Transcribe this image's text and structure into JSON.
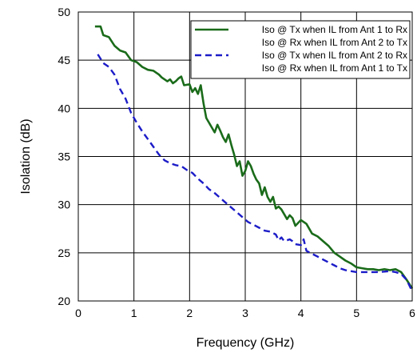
{
  "chart_data": {
    "type": "line",
    "title": "",
    "xlabel": "Frequency (GHz)",
    "ylabel": "Isolation (dB)",
    "xlim": [
      0,
      6
    ],
    "ylim": [
      20,
      50
    ],
    "x_ticks": [
      "0",
      "1",
      "2",
      "3",
      "4",
      "5",
      "6"
    ],
    "y_ticks": [
      "20",
      "25",
      "30",
      "35",
      "40",
      "45",
      "50"
    ],
    "grid": true,
    "legend_position": "top-right",
    "series": [
      {
        "name": "Iso @ Tx when IL from Ant 1 to Rx",
        "color": "#1a6b1a",
        "style": "solid",
        "points": [
          [
            0.3,
            48.5
          ],
          [
            0.4,
            48.5
          ],
          [
            0.45,
            47.6
          ],
          [
            0.55,
            47.4
          ],
          [
            0.65,
            46.5
          ],
          [
            0.75,
            46.0
          ],
          [
            0.85,
            45.8
          ],
          [
            0.95,
            45.0
          ],
          [
            1.05,
            44.8
          ],
          [
            1.15,
            44.3
          ],
          [
            1.25,
            44.0
          ],
          [
            1.35,
            43.9
          ],
          [
            1.45,
            43.5
          ],
          [
            1.5,
            43.2
          ],
          [
            1.6,
            42.8
          ],
          [
            1.65,
            43.0
          ],
          [
            1.7,
            42.6
          ],
          [
            1.75,
            42.8
          ],
          [
            1.8,
            43.1
          ],
          [
            1.85,
            43.3
          ],
          [
            1.9,
            42.4
          ],
          [
            2.0,
            42.5
          ],
          [
            2.05,
            41.7
          ],
          [
            2.1,
            42.1
          ],
          [
            2.15,
            41.5
          ],
          [
            2.2,
            42.4
          ],
          [
            2.25,
            40.5
          ],
          [
            2.3,
            39.0
          ],
          [
            2.35,
            38.5
          ],
          [
            2.4,
            38.0
          ],
          [
            2.45,
            37.5
          ],
          [
            2.5,
            38.3
          ],
          [
            2.55,
            37.7
          ],
          [
            2.6,
            37.0
          ],
          [
            2.65,
            36.5
          ],
          [
            2.7,
            37.3
          ],
          [
            2.75,
            36.2
          ],
          [
            2.8,
            35.2
          ],
          [
            2.85,
            34.0
          ],
          [
            2.9,
            34.5
          ],
          [
            2.95,
            33.0
          ],
          [
            3.0,
            33.5
          ],
          [
            3.05,
            34.5
          ],
          [
            3.1,
            34.0
          ],
          [
            3.15,
            33.2
          ],
          [
            3.2,
            32.6
          ],
          [
            3.25,
            32.2
          ],
          [
            3.3,
            31.0
          ],
          [
            3.35,
            31.8
          ],
          [
            3.4,
            30.8
          ],
          [
            3.45,
            30.3
          ],
          [
            3.5,
            30.8
          ],
          [
            3.55,
            29.6
          ],
          [
            3.6,
            29.8
          ],
          [
            3.65,
            29.5
          ],
          [
            3.7,
            29.0
          ],
          [
            3.75,
            28.5
          ],
          [
            3.8,
            28.9
          ],
          [
            3.85,
            28.6
          ],
          [
            3.9,
            27.8
          ],
          [
            4.0,
            28.4
          ],
          [
            4.1,
            28.0
          ],
          [
            4.2,
            27.0
          ],
          [
            4.3,
            26.7
          ],
          [
            4.4,
            26.2
          ],
          [
            4.5,
            25.7
          ],
          [
            4.6,
            25.0
          ],
          [
            4.7,
            24.6
          ],
          [
            4.8,
            24.2
          ],
          [
            4.9,
            23.9
          ],
          [
            5.0,
            23.5
          ],
          [
            5.1,
            23.4
          ],
          [
            5.2,
            23.3
          ],
          [
            5.3,
            23.3
          ],
          [
            5.4,
            23.2
          ],
          [
            5.5,
            23.3
          ],
          [
            5.6,
            23.2
          ],
          [
            5.7,
            23.3
          ],
          [
            5.8,
            23.0
          ],
          [
            5.9,
            22.2
          ],
          [
            6.0,
            21.3
          ]
        ]
      },
      {
        "name": "Iso @ Rx when IL from Ant 2 to Tx",
        "color": "#1a6b1a",
        "style": "solid",
        "points": []
      },
      {
        "name": "Iso @ Tx when IL from Ant 2 to Rx",
        "color": "#1c1cc8",
        "style": "dashed",
        "points": [
          [
            0.35,
            45.6
          ],
          [
            0.45,
            44.7
          ],
          [
            0.55,
            44.3
          ],
          [
            0.65,
            43.5
          ],
          [
            0.75,
            42.0
          ],
          [
            0.85,
            41.0
          ],
          [
            0.95,
            39.5
          ],
          [
            1.05,
            38.5
          ],
          [
            1.15,
            37.6
          ],
          [
            1.25,
            36.8
          ],
          [
            1.35,
            36.0
          ],
          [
            1.45,
            35.2
          ],
          [
            1.55,
            34.6
          ],
          [
            1.65,
            34.3
          ],
          [
            1.75,
            34.1
          ],
          [
            1.85,
            34.0
          ],
          [
            1.95,
            33.6
          ],
          [
            2.05,
            33.3
          ],
          [
            2.15,
            32.7
          ],
          [
            2.25,
            32.2
          ],
          [
            2.35,
            31.6
          ],
          [
            2.45,
            31.2
          ],
          [
            2.55,
            30.7
          ],
          [
            2.65,
            30.2
          ],
          [
            2.75,
            29.7
          ],
          [
            2.85,
            29.2
          ],
          [
            2.95,
            28.7
          ],
          [
            3.05,
            28.2
          ],
          [
            3.15,
            27.9
          ],
          [
            3.25,
            27.6
          ],
          [
            3.35,
            27.3
          ],
          [
            3.45,
            27.2
          ],
          [
            3.55,
            26.9
          ],
          [
            3.6,
            26.3
          ],
          [
            3.65,
            26.6
          ],
          [
            3.7,
            26.2
          ],
          [
            3.8,
            26.4
          ],
          [
            3.85,
            26.2
          ],
          [
            3.9,
            25.9
          ],
          [
            4.0,
            25.8
          ],
          [
            4.05,
            26.4
          ],
          [
            4.1,
            25.2
          ],
          [
            4.2,
            24.9
          ],
          [
            4.3,
            24.6
          ],
          [
            4.4,
            24.3
          ],
          [
            4.5,
            24.0
          ],
          [
            4.6,
            23.7
          ],
          [
            4.7,
            23.4
          ],
          [
            4.8,
            23.2
          ],
          [
            5.0,
            23.0
          ],
          [
            5.2,
            23.0
          ],
          [
            5.4,
            23.0
          ],
          [
            5.6,
            23.1
          ],
          [
            5.7,
            23.0
          ],
          [
            5.8,
            22.8
          ],
          [
            5.9,
            22.2
          ],
          [
            6.0,
            21.0
          ]
        ]
      },
      {
        "name": "Iso @ Rx when IL from Ant 1 to Tx",
        "color": "#1c1cc8",
        "style": "dashed",
        "points": []
      }
    ]
  }
}
